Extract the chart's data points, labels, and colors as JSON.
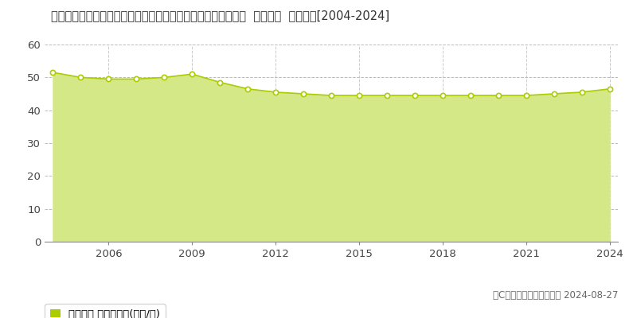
{
  "title": "埼玉県さいたま市桜区大字大久保領家字中作田５６３番３２外  地価公示  地価推移[2004-2024]",
  "years": [
    2004,
    2005,
    2006,
    2007,
    2008,
    2009,
    2010,
    2011,
    2012,
    2013,
    2014,
    2015,
    2016,
    2017,
    2018,
    2019,
    2020,
    2021,
    2022,
    2023,
    2024
  ],
  "values": [
    51.5,
    50.0,
    49.5,
    49.5,
    50.0,
    51.0,
    48.5,
    46.5,
    45.5,
    45.0,
    44.5,
    44.5,
    44.5,
    44.5,
    44.5,
    44.5,
    44.5,
    44.5,
    45.0,
    45.5,
    46.5
  ],
  "line_color": "#aacc00",
  "fill_color": "#d4e888",
  "marker_face": "#ffffff",
  "marker_edge": "#aacc00",
  "bg_color": "#ffffff",
  "grid_h_color": "#bbbbbb",
  "grid_v_color": "#cccccc",
  "ylim": [
    0,
    60
  ],
  "yticks": [
    0,
    10,
    20,
    30,
    40,
    50,
    60
  ],
  "xticks": [
    2006,
    2009,
    2012,
    2015,
    2018,
    2021,
    2024
  ],
  "legend_label": "地価公示 平均嵪単価(万円/嵪)",
  "legend_color": "#aacc00",
  "copyright_text": "（C）土地価格ドットコム 2024-08-27",
  "title_fontsize": 10.5,
  "tick_fontsize": 9.5,
  "legend_fontsize": 9.5,
  "copyright_fontsize": 8.5
}
